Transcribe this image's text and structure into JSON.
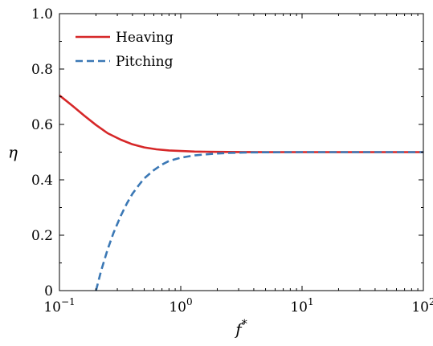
{
  "chart_data": {
    "type": "line",
    "title": "",
    "xlabel": "f",
    "xlabel_superscript": "*",
    "ylabel": "η",
    "x_scale": "log",
    "xlim": [
      0.1,
      100
    ],
    "ylim": [
      0,
      1.0
    ],
    "x_ticks": [
      {
        "value": 0.1,
        "base": "10",
        "exp": "−1"
      },
      {
        "value": 1,
        "base": "10",
        "exp": "0"
      },
      {
        "value": 10,
        "base": "10",
        "exp": "1"
      },
      {
        "value": 100,
        "base": "10",
        "exp": "2"
      }
    ],
    "y_ticks": [
      {
        "value": 0,
        "label": "0"
      },
      {
        "value": 0.2,
        "label": "0.2"
      },
      {
        "value": 0.4,
        "label": "0.4"
      },
      {
        "value": 0.6,
        "label": "0.6"
      },
      {
        "value": 0.8,
        "label": "0.8"
      },
      {
        "value": 1.0,
        "label": "1.0"
      }
    ],
    "grid": false,
    "legend_position": "top-left",
    "series": [
      {
        "name": "Heaving",
        "color": "#d62728",
        "style": "solid",
        "x": [
          0.1,
          0.13,
          0.16,
          0.2,
          0.25,
          0.32,
          0.4,
          0.5,
          0.63,
          0.8,
          1.0,
          1.3,
          1.6,
          2.0,
          2.5,
          3.2,
          4.0,
          5.0,
          10,
          20,
          50,
          100
        ],
        "y": [
          0.705,
          0.665,
          0.632,
          0.598,
          0.568,
          0.545,
          0.528,
          0.517,
          0.51,
          0.506,
          0.504,
          0.502,
          0.5015,
          0.501,
          0.5005,
          0.5003,
          0.5002,
          0.5001,
          0.5,
          0.5,
          0.5,
          0.5
        ]
      },
      {
        "name": "Pitching",
        "color": "#3b78b5",
        "style": "dashed",
        "x": [
          0.2,
          0.22,
          0.25,
          0.28,
          0.32,
          0.36,
          0.4,
          0.45,
          0.5,
          0.6,
          0.7,
          0.8,
          1.0,
          1.3,
          1.6,
          2.0,
          2.5,
          3.2,
          4.0,
          5.0,
          10,
          20,
          50,
          100
        ],
        "y": [
          0.0,
          0.07,
          0.15,
          0.21,
          0.27,
          0.315,
          0.35,
          0.38,
          0.405,
          0.435,
          0.455,
          0.468,
          0.48,
          0.488,
          0.492,
          0.495,
          0.497,
          0.4982,
          0.499,
          0.4995,
          0.5,
          0.5,
          0.5,
          0.5
        ]
      }
    ]
  }
}
